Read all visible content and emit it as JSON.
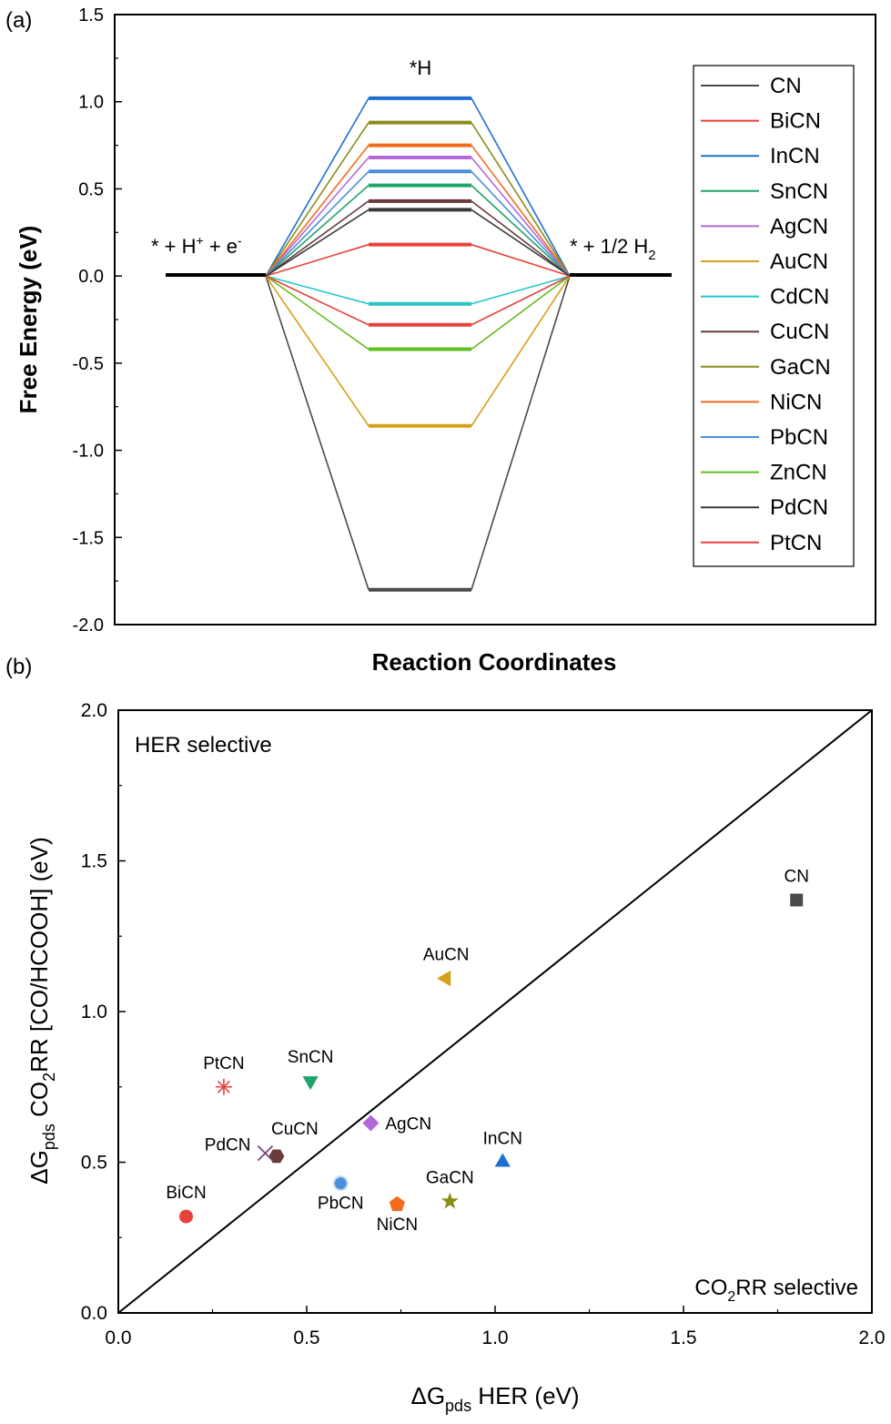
{
  "panel_a": {
    "letter": "(a)",
    "chart_data": {
      "type": "line",
      "ylabel": "Free Energy (eV)",
      "xlabel": "Reaction Coordinates",
      "ylim": [
        -2.0,
        1.5
      ],
      "yticks": [
        "1.5",
        "1.0",
        "0.5",
        "0.0",
        "-0.5",
        "-1.0",
        "-1.5",
        "-2.0"
      ],
      "stage_labels": {
        "initial": "* + H",
        "intermediate": "*H",
        "final": "* + 1/2 H"
      },
      "stage_initial_sup1": "+",
      "stage_initial_mid": " + e",
      "stage_initial_sup2": "-",
      "stage_final_sub": "2",
      "legend_position": "right",
      "series": [
        {
          "name": "CN",
          "color": "#4a4a4a",
          "value": -1.8
        },
        {
          "name": "BiCN",
          "color": "#e8413c",
          "value": 0.18
        },
        {
          "name": "InCN",
          "color": "#1f6fd1",
          "value": 1.02
        },
        {
          "name": "SnCN",
          "color": "#20a36a",
          "value": 0.52
        },
        {
          "name": "AgCN",
          "color": "#b36ad8",
          "value": 0.68
        },
        {
          "name": "AuCN",
          "color": "#d4a017",
          "value": -0.86
        },
        {
          "name": "CdCN",
          "color": "#26c6c6",
          "value": -0.16
        },
        {
          "name": "CuCN",
          "color": "#6b3a3a",
          "value": 0.43
        },
        {
          "name": "GaCN",
          "color": "#8c8c1a",
          "value": 0.88
        },
        {
          "name": "NiCN",
          "color": "#f26b1d",
          "value": 0.75
        },
        {
          "name": "PbCN",
          "color": "#4a90d9",
          "value": 0.6
        },
        {
          "name": "ZnCN",
          "color": "#5fbf1f",
          "value": -0.42
        },
        {
          "name": "PdCN",
          "color": "#3a3a3a",
          "value": 0.38
        },
        {
          "name": "PtCN",
          "color": "#e8413c",
          "value": -0.28
        }
      ]
    }
  },
  "panel_b": {
    "letter": "(b)",
    "chart_data": {
      "type": "scatter",
      "xlabel_delta": "ΔG",
      "xlabel_sub": "pds",
      "xlabel_rest": " HER (eV)",
      "ylabel_delta": "ΔG",
      "ylabel_sub": "pds",
      "ylabel_mid": " CO",
      "ylabel_sub2": "2",
      "ylabel_rest": "RR [CO/HCOOH] (eV)",
      "xlim": [
        0,
        2.0
      ],
      "ylim": [
        0,
        2.0
      ],
      "xticks": [
        "0.0",
        "0.5",
        "1.0",
        "1.5",
        "2.0"
      ],
      "yticks": [
        "0.0",
        "0.5",
        "1.0",
        "1.5",
        "2.0"
      ],
      "diagonal": true,
      "annotation_top": "HER selective",
      "annotation_bottom_a": "CO",
      "annotation_bottom_sub": "2",
      "annotation_bottom_b": "RR selective",
      "points": [
        {
          "label": "CN",
          "x": 1.8,
          "y": 1.37,
          "marker": "square",
          "color": "#4a4a4a",
          "label_pos": "above"
        },
        {
          "label": "AuCN",
          "x": 0.87,
          "y": 1.11,
          "marker": "tri-left",
          "color": "#d4a017",
          "label_pos": "above"
        },
        {
          "label": "PtCN",
          "x": 0.28,
          "y": 0.75,
          "marker": "asterisk",
          "color": "#e8413c",
          "label_pos": "above"
        },
        {
          "label": "SnCN",
          "x": 0.51,
          "y": 0.77,
          "marker": "tri-down",
          "color": "#20a36a",
          "label_pos": "above"
        },
        {
          "label": "AgCN",
          "x": 0.67,
          "y": 0.63,
          "marker": "diamond",
          "color": "#b36ad8",
          "label_pos": "right"
        },
        {
          "label": "CuCN",
          "x": 0.42,
          "y": 0.52,
          "marker": "hexagon",
          "color": "#6b3a3a",
          "label_pos": "above-right"
        },
        {
          "label": "PdCN",
          "x": 0.39,
          "y": 0.53,
          "marker": "cross",
          "color": "#7b4a7b",
          "label_pos": "left"
        },
        {
          "label": "InCN",
          "x": 1.02,
          "y": 0.5,
          "marker": "tri-up",
          "color": "#1f6fd1",
          "label_pos": "above"
        },
        {
          "label": "GaCN",
          "x": 0.88,
          "y": 0.37,
          "marker": "star",
          "color": "#8c8c1a",
          "label_pos": "above"
        },
        {
          "label": "PbCN",
          "x": 0.59,
          "y": 0.43,
          "marker": "sphere",
          "color": "#4a90d9",
          "label_pos": "below"
        },
        {
          "label": "NiCN",
          "x": 0.74,
          "y": 0.36,
          "marker": "pentagon",
          "color": "#f26b1d",
          "label_pos": "below"
        },
        {
          "label": "BiCN",
          "x": 0.18,
          "y": 0.32,
          "marker": "circle",
          "color": "#e8413c",
          "label_pos": "above"
        }
      ]
    }
  }
}
